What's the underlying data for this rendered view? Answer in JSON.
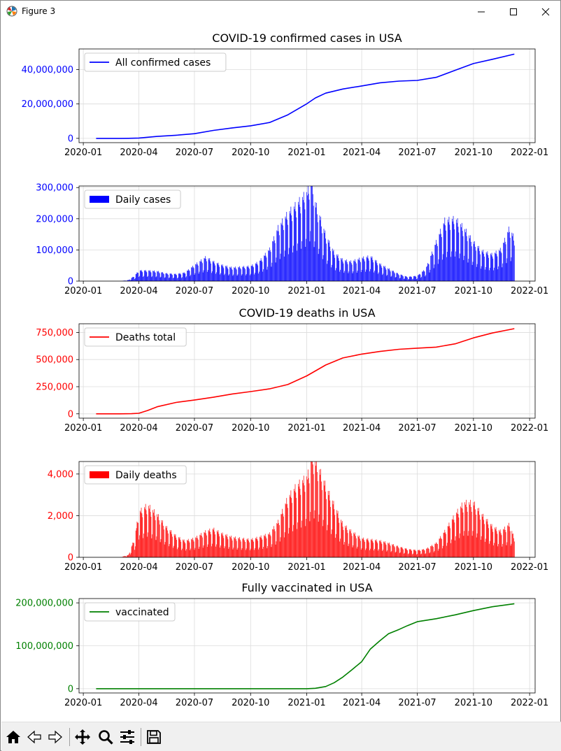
{
  "window": {
    "title": "Figure 3",
    "icons": {
      "app": "matplotlib-logo-icon",
      "minimize": "minimize-icon",
      "maximize": "maximize-icon",
      "close": "close-icon"
    }
  },
  "toolbar": {
    "buttons": [
      {
        "name": "home",
        "icon": "home-icon"
      },
      {
        "name": "back",
        "icon": "back-arrow-icon"
      },
      {
        "name": "forward",
        "icon": "forward-arrow-icon"
      },
      {
        "name": "pan",
        "icon": "pan-move-icon"
      },
      {
        "name": "zoom",
        "icon": "zoom-magnifier-icon"
      },
      {
        "name": "configure-subplots",
        "icon": "sliders-icon"
      },
      {
        "name": "save",
        "icon": "floppy-disk-icon"
      }
    ]
  },
  "colors": {
    "blue": "#0000ff",
    "red": "#ff0000",
    "green": "#008000",
    "grid": "#dcdcdc",
    "axis": "#000000"
  },
  "x_ticks": [
    "2020-01",
    "2020-04",
    "2020-07",
    "2020-10",
    "2021-01",
    "2021-04",
    "2021-07",
    "2021-10",
    "2022-01"
  ],
  "chart_data": [
    {
      "type": "line",
      "title": "COVID-19 confirmed cases in USA",
      "xlabel": "",
      "ylabel": "",
      "xlim": [
        "2019-12-25",
        "2022-01-10"
      ],
      "ylim": [
        -2500000,
        52000000
      ],
      "y_ticks": [
        0,
        20000000,
        40000000
      ],
      "y_tick_labels": [
        "0",
        "20,000,000",
        "40,000,000"
      ],
      "tick_color": "#0000ff",
      "legend": {
        "placement": "upper left",
        "label": "All confirmed cases",
        "kind": "line"
      },
      "grid": true,
      "series": [
        {
          "name": "All confirmed cases",
          "color": "#0000ff",
          "x": [
            "2020-01-22",
            "2020-03-01",
            "2020-03-15",
            "2020-04-01",
            "2020-05-01",
            "2020-06-01",
            "2020-07-01",
            "2020-08-01",
            "2020-09-01",
            "2020-10-01",
            "2020-11-01",
            "2020-12-01",
            "2021-01-01",
            "2021-01-15",
            "2021-02-01",
            "2021-03-01",
            "2021-04-01",
            "2021-05-01",
            "2021-06-01",
            "2021-07-01",
            "2021-08-01",
            "2021-09-01",
            "2021-10-01",
            "2021-11-01",
            "2021-12-07"
          ],
          "y": [
            1,
            100,
            3000,
            200000,
            1100000,
            1800000,
            2700000,
            4600000,
            6100000,
            7300000,
            9200000,
            13700000,
            20100000,
            23500000,
            26300000,
            28700000,
            30500000,
            32300000,
            33300000,
            33700000,
            35500000,
            39600000,
            43500000,
            46000000,
            49000000
          ]
        }
      ]
    },
    {
      "type": "bar",
      "title": "",
      "xlabel": "",
      "ylabel": "",
      "xlim": [
        "2019-12-25",
        "2022-01-10"
      ],
      "ylim": [
        0,
        305000
      ],
      "y_ticks": [
        0,
        100000,
        200000,
        300000
      ],
      "y_tick_labels": [
        "0",
        "100,000",
        "200,000",
        "300,000"
      ],
      "tick_color": "#0000ff",
      "legend": {
        "placement": "upper left",
        "label": "Daily cases",
        "kind": "patch"
      },
      "grid": true,
      "series": [
        {
          "name": "Daily cases",
          "color": "#0000ff",
          "x": [
            "2020-01-22",
            "2020-03-01",
            "2020-03-15",
            "2020-03-25",
            "2020-04-01",
            "2020-04-15",
            "2020-05-01",
            "2020-05-15",
            "2020-06-01",
            "2020-06-15",
            "2020-07-01",
            "2020-07-20",
            "2020-08-01",
            "2020-08-15",
            "2020-09-01",
            "2020-09-15",
            "2020-10-01",
            "2020-10-15",
            "2020-11-01",
            "2020-11-15",
            "2020-12-01",
            "2020-12-15",
            "2021-01-02",
            "2021-01-08",
            "2021-01-15",
            "2021-02-01",
            "2021-02-15",
            "2021-03-01",
            "2021-03-15",
            "2021-04-01",
            "2021-04-15",
            "2021-05-01",
            "2021-05-15",
            "2021-06-01",
            "2021-06-15",
            "2021-07-01",
            "2021-07-15",
            "2021-08-01",
            "2021-08-15",
            "2021-09-01",
            "2021-09-15",
            "2021-10-01",
            "2021-10-15",
            "2021-11-01",
            "2021-11-15",
            "2021-11-29",
            "2021-12-07"
          ],
          "y": [
            0,
            0,
            3000,
            15000,
            30000,
            30000,
            28000,
            22000,
            20000,
            24000,
            45000,
            68000,
            55000,
            45000,
            38000,
            40000,
            42000,
            55000,
            90000,
            150000,
            190000,
            215000,
            250000,
            300000,
            220000,
            130000,
            80000,
            60000,
            55000,
            65000,
            70000,
            48000,
            35000,
            20000,
            12000,
            15000,
            35000,
            110000,
            170000,
            175000,
            150000,
            110000,
            85000,
            75000,
            90000,
            150000,
            120000
          ]
        }
      ]
    },
    {
      "type": "line",
      "title": "COVID-19 deaths in USA",
      "xlabel": "",
      "ylabel": "",
      "xlim": [
        "2019-12-25",
        "2022-01-10"
      ],
      "ylim": [
        -40000,
        830000
      ],
      "y_ticks": [
        0,
        250000,
        500000,
        750000
      ],
      "y_tick_labels": [
        "0",
        "250,000",
        "500,000",
        "750,000"
      ],
      "tick_color": "#ff0000",
      "legend": {
        "placement": "upper left",
        "label": "Deaths total",
        "kind": "line"
      },
      "grid": true,
      "series": [
        {
          "name": "Deaths total",
          "color": "#ff0000",
          "x": [
            "2020-01-22",
            "2020-03-01",
            "2020-03-20",
            "2020-04-01",
            "2020-04-15",
            "2020-05-01",
            "2020-06-01",
            "2020-07-01",
            "2020-08-01",
            "2020-09-01",
            "2020-10-01",
            "2020-11-01",
            "2020-12-01",
            "2021-01-01",
            "2021-02-01",
            "2021-03-01",
            "2021-04-01",
            "2021-05-01",
            "2021-06-01",
            "2021-07-01",
            "2021-08-01",
            "2021-09-01",
            "2021-10-01",
            "2021-11-01",
            "2021-12-07"
          ],
          "y": [
            0,
            0,
            1000,
            5000,
            30000,
            65000,
            105000,
            127000,
            153000,
            183000,
            205000,
            230000,
            270000,
            350000,
            450000,
            515000,
            550000,
            575000,
            595000,
            605000,
            615000,
            645000,
            700000,
            745000,
            785000
          ]
        }
      ]
    },
    {
      "type": "bar",
      "title": "",
      "xlabel": "",
      "ylabel": "",
      "xlim": [
        "2019-12-25",
        "2022-01-10"
      ],
      "ylim": [
        0,
        4600
      ],
      "y_ticks": [
        0,
        2000,
        4000
      ],
      "y_tick_labels": [
        "0",
        "2,000",
        "4,000"
      ],
      "tick_color": "#ff0000",
      "legend": {
        "placement": "upper left",
        "label": "Daily deaths",
        "kind": "patch"
      },
      "grid": true,
      "series": [
        {
          "name": "Daily deaths",
          "color": "#ff0000",
          "x": [
            "2020-01-22",
            "2020-03-01",
            "2020-03-15",
            "2020-03-25",
            "2020-04-01",
            "2020-04-15",
            "2020-05-01",
            "2020-05-15",
            "2020-06-01",
            "2020-06-15",
            "2020-07-01",
            "2020-07-20",
            "2020-08-01",
            "2020-08-15",
            "2020-09-01",
            "2020-09-15",
            "2020-10-01",
            "2020-10-15",
            "2020-11-01",
            "2020-11-15",
            "2020-12-01",
            "2020-12-15",
            "2021-01-02",
            "2021-01-10",
            "2021-01-20",
            "2021-02-01",
            "2021-02-15",
            "2021-03-01",
            "2021-03-15",
            "2021-04-01",
            "2021-04-15",
            "2021-05-01",
            "2021-05-15",
            "2021-06-01",
            "2021-06-15",
            "2021-07-01",
            "2021-07-15",
            "2021-08-01",
            "2021-08-15",
            "2021-09-01",
            "2021-09-15",
            "2021-10-01",
            "2021-10-15",
            "2021-11-01",
            "2021-11-15",
            "2021-11-29",
            "2021-12-07"
          ],
          "y": [
            0,
            0,
            100,
            800,
            1900,
            2200,
            1800,
            1300,
            900,
            700,
            800,
            1100,
            1200,
            1000,
            850,
            800,
            750,
            850,
            1000,
            1500,
            2500,
            3000,
            3400,
            4300,
            3800,
            3000,
            2200,
            1400,
            1100,
            800,
            750,
            700,
            600,
            450,
            350,
            300,
            350,
            600,
            1100,
            1800,
            2300,
            2300,
            1800,
            1300,
            1100,
            1400,
            800
          ]
        }
      ]
    },
    {
      "type": "line",
      "title": "Fully vaccinated in USA",
      "xlabel": "",
      "ylabel": "",
      "xlim": [
        "2019-12-25",
        "2022-01-10"
      ],
      "ylim": [
        -10000000,
        210000000
      ],
      "y_ticks": [
        0,
        100000000,
        200000000
      ],
      "y_tick_labels": [
        "0",
        "100,000,000",
        "200,000,000"
      ],
      "tick_color": "#008000",
      "legend": {
        "placement": "upper left",
        "label": "vaccinated",
        "kind": "line"
      },
      "grid": true,
      "series": [
        {
          "name": "vaccinated",
          "color": "#008000",
          "x": [
            "2020-01-22",
            "2020-12-15",
            "2021-01-01",
            "2021-01-15",
            "2021-02-01",
            "2021-02-15",
            "2021-03-01",
            "2021-03-15",
            "2021-04-01",
            "2021-04-15",
            "2021-05-01",
            "2021-05-15",
            "2021-06-01",
            "2021-06-15",
            "2021-07-01",
            "2021-08-01",
            "2021-09-01",
            "2021-10-01",
            "2021-11-01",
            "2021-12-07"
          ],
          "y": [
            0,
            0,
            0,
            1000000,
            5000000,
            14000000,
            27000000,
            43000000,
            63000000,
            92000000,
            112000000,
            128000000,
            138000000,
            147000000,
            156000000,
            163000000,
            172000000,
            182000000,
            191000000,
            198000000
          ]
        }
      ]
    }
  ]
}
